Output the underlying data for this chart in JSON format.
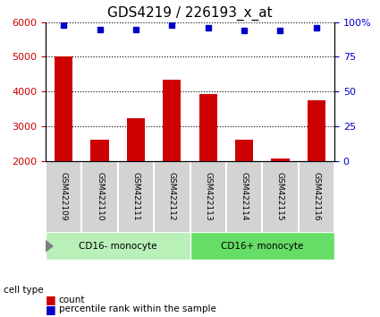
{
  "title": "GDS4219 / 226193_x_at",
  "samples": [
    "GSM422109",
    "GSM422110",
    "GSM422111",
    "GSM422112",
    "GSM422113",
    "GSM422114",
    "GSM422115",
    "GSM422116"
  ],
  "counts": [
    5020,
    2620,
    3220,
    4350,
    3920,
    2600,
    2060,
    3760
  ],
  "percentile_ranks": [
    98,
    95,
    95,
    98,
    96,
    94,
    94,
    96
  ],
  "ylim_left": [
    2000,
    6000
  ],
  "ylim_right": [
    0,
    100
  ],
  "yticks_left": [
    2000,
    3000,
    4000,
    5000,
    6000
  ],
  "yticks_right": [
    0,
    25,
    50,
    75,
    100
  ],
  "bar_color": "#cc0000",
  "dot_color": "#0000cc",
  "groups": [
    {
      "label": "CD16- monocyte",
      "indices": [
        0,
        1,
        2,
        3
      ],
      "color": "#90ee90"
    },
    {
      "label": "CD16+ monocyte",
      "indices": [
        4,
        5,
        6,
        7
      ],
      "color": "#00cc00"
    }
  ],
  "group_label": "cell type",
  "legend_count_label": "count",
  "legend_pct_label": "percentile rank within the sample",
  "bar_width": 0.5,
  "tick_label_area_color": "#d3d3d3",
  "background_color": "#ffffff",
  "plot_bg_color": "#ffffff",
  "dotted_line_color": "#000000",
  "title_fontsize": 11,
  "axis_label_fontsize": 9,
  "tick_fontsize": 8
}
